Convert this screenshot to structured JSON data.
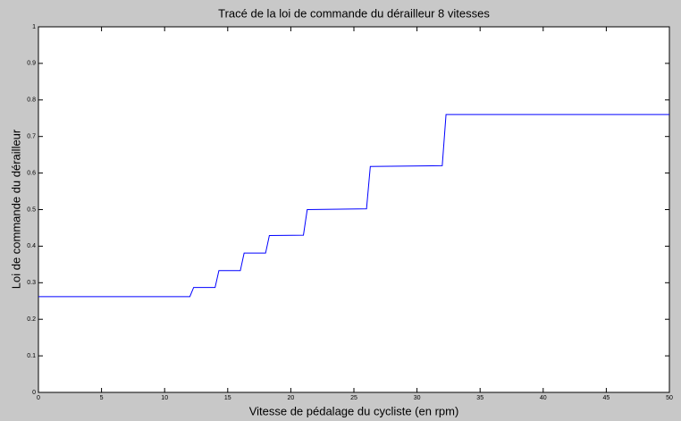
{
  "chart_data": {
    "type": "line",
    "title": "Tracé de la loi de commande du dérailleur 8 vitesses",
    "xlabel": "Vitesse de pédalage du cycliste (en rpm)",
    "ylabel": "Loi de commande du dérailleur",
    "x": [
      0,
      12,
      12.3,
      14,
      14.3,
      16,
      16.3,
      18,
      18.3,
      21,
      21.3,
      26,
      26.3,
      32,
      32.3,
      50
    ],
    "values": [
      0.262,
      0.262,
      0.287,
      0.287,
      0.333,
      0.333,
      0.381,
      0.381,
      0.429,
      0.43,
      0.5,
      0.502,
      0.618,
      0.62,
      0.76,
      0.76
    ],
    "color": "#0000ff",
    "xlim": [
      0,
      50
    ],
    "xticks": [
      0,
      5,
      10,
      15,
      20,
      25,
      30,
      35,
      40,
      45,
      50
    ],
    "ylim": [
      0,
      1
    ],
    "yticks": [
      0,
      0.1,
      0.2,
      0.3,
      0.4,
      0.5,
      0.6,
      0.7,
      0.8,
      0.9,
      1
    ]
  }
}
